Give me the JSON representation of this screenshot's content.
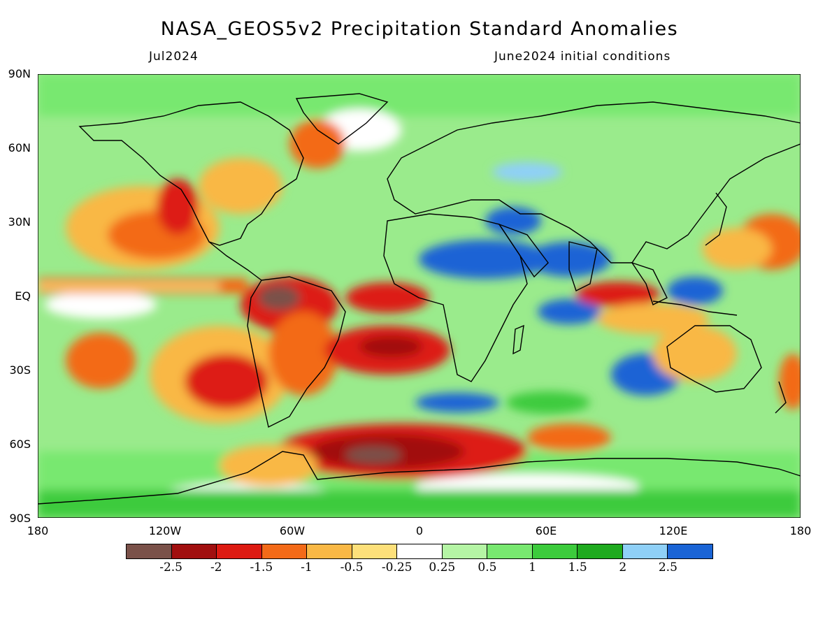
{
  "title": "NASA_GEOS5v2 Precipitation Standard Anomalies",
  "subtitle_left": "Jul2024",
  "subtitle_right": "June2024 initial conditions",
  "lat_labels": [
    "90N",
    "60N",
    "30N",
    "EQ",
    "30S",
    "60S",
    "90S"
  ],
  "lon_labels": [
    "180",
    "120W",
    "60W",
    "0",
    "60E",
    "120E",
    "180"
  ],
  "legend": {
    "colors": [
      "#7a5149",
      "#a10f0f",
      "#dd1a12",
      "#f36a18",
      "#f9b845",
      "#fde07a",
      "#ffffff",
      "#b5f5a5",
      "#78e870",
      "#3ccb3c",
      "#1faa1f",
      "#8fd0f7",
      "#1a64d5"
    ],
    "labels": [
      "-2.5",
      "-2",
      "-1.5",
      "-1",
      "-0.5",
      "-0.25",
      "0.25",
      "0.5",
      "1",
      "1.5",
      "2",
      "2.5"
    ]
  }
}
